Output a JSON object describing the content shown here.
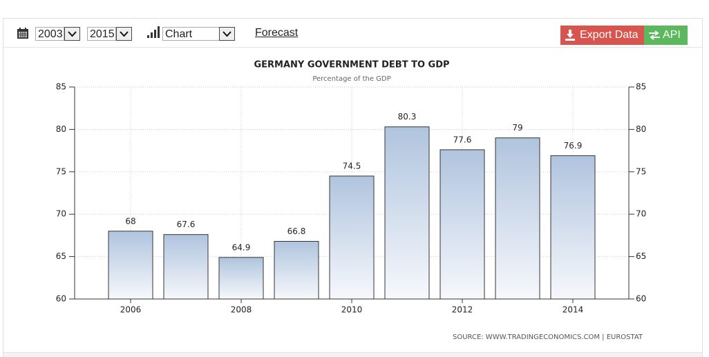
{
  "toolbar": {
    "start_year": "2003",
    "end_year": "2015",
    "view": "Chart",
    "forecast": "Forecast",
    "export": "Export Data",
    "api": "API"
  },
  "chart_data": {
    "type": "bar",
    "title": "GERMANY GOVERNMENT DEBT TO GDP",
    "subtitle": "Percentage of the GDP",
    "categories": [
      "2006",
      null,
      "2008",
      null,
      "2010",
      null,
      "2012",
      null,
      "2014"
    ],
    "values": [
      68,
      67.6,
      64.9,
      66.8,
      74.5,
      80.3,
      77.6,
      79,
      76.9
    ],
    "ylim": [
      60,
      85
    ],
    "yticks": [
      60,
      65,
      70,
      75,
      80,
      85
    ],
    "y2lim": [
      60,
      85
    ],
    "y2ticks": [
      60,
      65,
      70,
      75,
      80,
      85
    ],
    "grid": true,
    "color": "#b0c4de",
    "source": "SOURCE: WWW.TRADINGECONOMICS.COM | EUROSTAT"
  }
}
